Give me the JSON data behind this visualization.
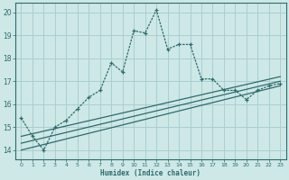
{
  "xlabel": "Humidex (Indice chaleur)",
  "background_color": "#cde8e7",
  "grid_color": "#aaced0",
  "line_color": "#2d6b6b",
  "xlim": [
    -0.5,
    23.5
  ],
  "ylim": [
    13.6,
    20.4
  ],
  "yticks": [
    14,
    15,
    16,
    17,
    18,
    19,
    20
  ],
  "xticks": [
    0,
    1,
    2,
    3,
    4,
    5,
    6,
    7,
    8,
    9,
    10,
    11,
    12,
    13,
    14,
    15,
    16,
    17,
    18,
    19,
    20,
    21,
    22,
    23
  ],
  "main_x": [
    0,
    1,
    2,
    3,
    4,
    5,
    6,
    7,
    8,
    9,
    10,
    11,
    12,
    13,
    14,
    15,
    16,
    17,
    18,
    19,
    20,
    21,
    22,
    23
  ],
  "main_y": [
    15.4,
    14.6,
    14.0,
    15.0,
    15.3,
    15.8,
    16.3,
    16.6,
    17.8,
    17.4,
    19.2,
    19.1,
    20.1,
    18.4,
    18.6,
    18.6,
    17.1,
    17.1,
    16.6,
    16.6,
    16.2,
    16.6,
    16.8,
    16.9
  ],
  "line2_x": [
    0,
    23
  ],
  "line2_y": [
    14.0,
    16.8
  ],
  "line3_x": [
    0,
    23
  ],
  "line3_y": [
    14.3,
    17.0
  ],
  "line4_x": [
    0,
    23
  ],
  "line4_y": [
    14.6,
    17.2
  ]
}
